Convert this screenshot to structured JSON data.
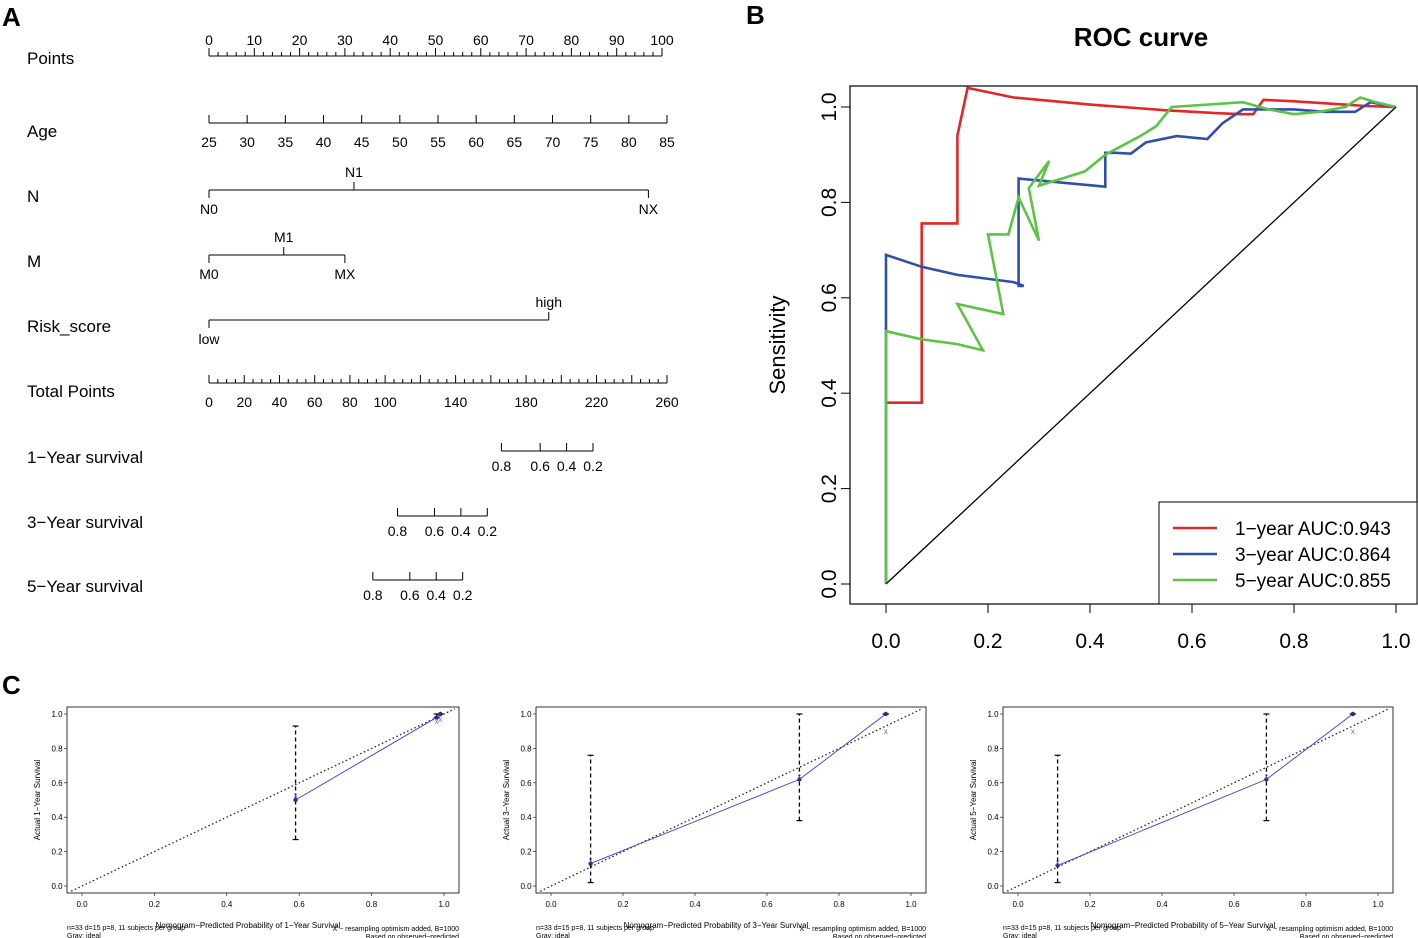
{
  "panels": {
    "a": "A",
    "b": "B",
    "c": "C"
  },
  "chart_data": [
    {
      "type": "nomogram",
      "panel": "A",
      "rows": [
        {
          "label": "Points",
          "kind": "scale",
          "from": 0,
          "to": 100,
          "ticks": [
            0,
            10,
            20,
            30,
            40,
            50,
            60,
            70,
            80,
            90,
            100
          ],
          "tick_labels": [
            "0",
            "10",
            "20",
            "30",
            "40",
            "50",
            "60",
            "70",
            "80",
            "90",
            "100"
          ],
          "minor_step": 2
        },
        {
          "label": "Age",
          "kind": "scale",
          "from": 25,
          "to": 85,
          "tick_labels": [
            "25",
            "30",
            "35",
            "40",
            "45",
            "50",
            "55",
            "60",
            "65",
            "70",
            "75",
            "80",
            "85"
          ],
          "points_at_min": 0,
          "points_at_max": 100
        },
        {
          "label": "N",
          "kind": "categorical",
          "levels": [
            {
              "name": "N0",
              "points": 0,
              "side": "below"
            },
            {
              "name": "N1",
              "points": 32,
              "side": "above"
            },
            {
              "name": "NX",
              "points": 97,
              "side": "below"
            }
          ]
        },
        {
          "label": "M",
          "kind": "categorical",
          "levels": [
            {
              "name": "M0",
              "points": 0,
              "side": "below"
            },
            {
              "name": "M1",
              "points": 16.5,
              "side": "above"
            },
            {
              "name": "MX",
              "points": 30,
              "side": "below"
            }
          ]
        },
        {
          "label": "Risk_score",
          "kind": "categorical",
          "levels": [
            {
              "name": "low",
              "points": 0,
              "side": "below"
            },
            {
              "name": "high",
              "points": 75,
              "side": "above"
            }
          ]
        },
        {
          "label": "Total Points",
          "kind": "scale",
          "from": 0,
          "to": 260,
          "ticks": [
            0,
            20,
            40,
            60,
            80,
            100,
            140,
            180,
            220,
            260
          ],
          "tick_labels": [
            "0",
            "20",
            "40",
            "60",
            "80",
            "100",
            "140",
            "180",
            "220",
            "260"
          ],
          "minor_step": 5
        },
        {
          "label": "1−Year survival",
          "kind": "probability",
          "tick_labels": [
            "0.8",
            "0.6",
            "0.4",
            "0.2"
          ],
          "total_points": [
            166,
            188,
            203,
            218
          ]
        },
        {
          "label": "3−Year survival",
          "kind": "probability",
          "tick_labels": [
            "0.8",
            "0.6",
            "0.4",
            "0.2"
          ],
          "total_points": [
            107,
            128,
            143,
            158
          ]
        },
        {
          "label": "5−Year survival",
          "kind": "probability",
          "tick_labels": [
            "0.8",
            "0.6",
            "0.4",
            "0.2"
          ],
          "total_points": [
            93,
            114,
            129,
            144
          ]
        }
      ]
    },
    {
      "type": "line",
      "panel": "B",
      "title": "ROC curve",
      "xlabel": "",
      "ylabel": "Sensitivity",
      "xlim": [
        0,
        1
      ],
      "ylim": [
        0,
        1
      ],
      "x_tick_labels": [
        "0.0",
        "0.2",
        "0.4",
        "0.6",
        "0.8",
        "1.0"
      ],
      "y_tick_labels": [
        "0.0",
        "0.2",
        "0.4",
        "0.6",
        "0.8",
        "1.0"
      ],
      "legend_position": "bottom-right",
      "series": [
        {
          "name": "1−year AUC:0.943",
          "color": "#e32626",
          "x": [
            0,
            0,
            0.07,
            0.07,
            0.14,
            0.14,
            0.16,
            0.25,
            0.4,
            0.55,
            0.65,
            0.7,
            0.72,
            0.74,
            0.8,
            0.9,
            0.94,
            1.0
          ],
          "y": [
            0.38,
            0.38,
            0.38,
            0.756,
            0.756,
            0.94,
            1.04,
            1.02,
            1.005,
            0.993,
            0.987,
            0.985,
            0.985,
            1.015,
            1.012,
            1.005,
            1.002,
            1.0
          ]
        },
        {
          "name": "3−year AUC:0.864",
          "color": "#3050a8",
          "x": [
            0,
            0,
            0.07,
            0.14,
            0.25,
            0.27,
            0.26,
            0.26,
            0.43,
            0.43,
            0.45,
            0.48,
            0.51,
            0.57,
            0.63,
            0.66,
            0.7,
            0.8,
            0.86,
            0.92,
            0.95,
            1.0
          ],
          "y": [
            0.0,
            0.69,
            0.665,
            0.648,
            0.633,
            0.625,
            0.625,
            0.85,
            0.833,
            0.904,
            0.904,
            0.902,
            0.926,
            0.939,
            0.933,
            0.966,
            0.995,
            0.995,
            0.99,
            0.99,
            1.01,
            1.0
          ]
        },
        {
          "name": "5−year AUC:0.855",
          "color": "#5cc444",
          "x": [
            0,
            0,
            0.07,
            0.14,
            0.19,
            0.14,
            0.23,
            0.2,
            0.24,
            0.26,
            0.3,
            0.28,
            0.32,
            0.3,
            0.39,
            0.43,
            0.5,
            0.53,
            0.56,
            0.7,
            0.75,
            0.8,
            0.85,
            0.9,
            0.93,
            0.96,
            1.0
          ],
          "y": [
            0.0,
            0.53,
            0.513,
            0.503,
            0.49,
            0.587,
            0.566,
            0.733,
            0.733,
            0.81,
            0.72,
            0.83,
            0.887,
            0.835,
            0.865,
            0.9,
            0.94,
            0.96,
            1.0,
            1.01,
            0.995,
            0.985,
            0.99,
            1.0,
            1.02,
            1.01,
            1.0
          ]
        },
        {
          "name": "reference",
          "color": "#000000",
          "x": [
            0,
            1
          ],
          "y": [
            0,
            1
          ]
        }
      ]
    },
    {
      "type": "scatter",
      "panel": "C",
      "plots": [
        {
          "xlabel": "Nomogram−Predicted Probability of 1−Year Survival",
          "ylabel": "Actual 1−Year Survival",
          "x_tick_labels": [
            "0.0",
            "0.2",
            "0.4",
            "0.6",
            "0.8",
            "1.0"
          ],
          "y_tick_labels": [
            "0.0",
            "0.2",
            "0.4",
            "0.6",
            "0.8",
            "1.0"
          ],
          "note_left": "n=33 d=15 p=8, 11 subjects per group",
          "note_left2": "Gray: ideal",
          "note_right": "X − resampling optimism added, B=1000",
          "note_right2": "Based on observed−predicted",
          "x": [
            0.59,
            0.98,
            0.99
          ],
          "y": [
            0.5,
            0.98,
            1.0
          ],
          "ci_low": [
            0.27,
            0.98,
            1.0
          ],
          "ci_high": [
            0.93,
            1.0,
            1.0
          ],
          "corrected_x": [
            0.59,
            0.98,
            0.99
          ],
          "corrected_y": [
            0.53,
            0.96,
            0.97
          ]
        },
        {
          "xlabel": "Nomogram−Predicted Probability of 3−Year Survival",
          "ylabel": "Actual 3−Year Survival",
          "x_tick_labels": [
            "0.0",
            "0.2",
            "0.4",
            "0.6",
            "0.8",
            "1.0"
          ],
          "y_tick_labels": [
            "0.0",
            "0.2",
            "0.4",
            "0.6",
            "0.8",
            "1.0"
          ],
          "note_left": "n=33 d=15 p=8, 11 subjects per group",
          "note_left2": "Gray: ideal",
          "note_right": "X − resampling optimism added, B=1000",
          "note_right2": "Based on observed−predicted",
          "x": [
            0.11,
            0.69,
            0.93
          ],
          "y": [
            0.13,
            0.62,
            1.0
          ],
          "ci_low": [
            0.02,
            0.38,
            1.0
          ],
          "ci_high": [
            0.76,
            1.0,
            1.0
          ],
          "corrected_x": [
            0.11,
            0.69,
            0.93
          ],
          "corrected_y": [
            0.15,
            0.64,
            0.9
          ]
        },
        {
          "xlabel": "Nomogram−Predicted Probability of 5−Year Survival",
          "ylabel": "Actual 5−Year Survival",
          "x_tick_labels": [
            "0.0",
            "0.2",
            "0.4",
            "0.6",
            "0.8",
            "1.0"
          ],
          "y_tick_labels": [
            "0.0",
            "0.2",
            "0.4",
            "0.6",
            "0.8",
            "1.0"
          ],
          "note_left": "n=33 d=15 p=8, 11 subjects per group",
          "note_left2": "Gray: ideal",
          "note_right": "X − resampling optimism added, B=1000",
          "note_right2": "Based on observed−predicted",
          "x": [
            0.11,
            0.69,
            0.93
          ],
          "y": [
            0.12,
            0.62,
            1.0
          ],
          "ci_low": [
            0.02,
            0.38,
            1.0
          ],
          "ci_high": [
            0.76,
            1.0,
            1.0
          ],
          "corrected_x": [
            0.11,
            0.69,
            0.93
          ],
          "corrected_y": [
            0.14,
            0.64,
            0.9
          ]
        }
      ]
    }
  ]
}
